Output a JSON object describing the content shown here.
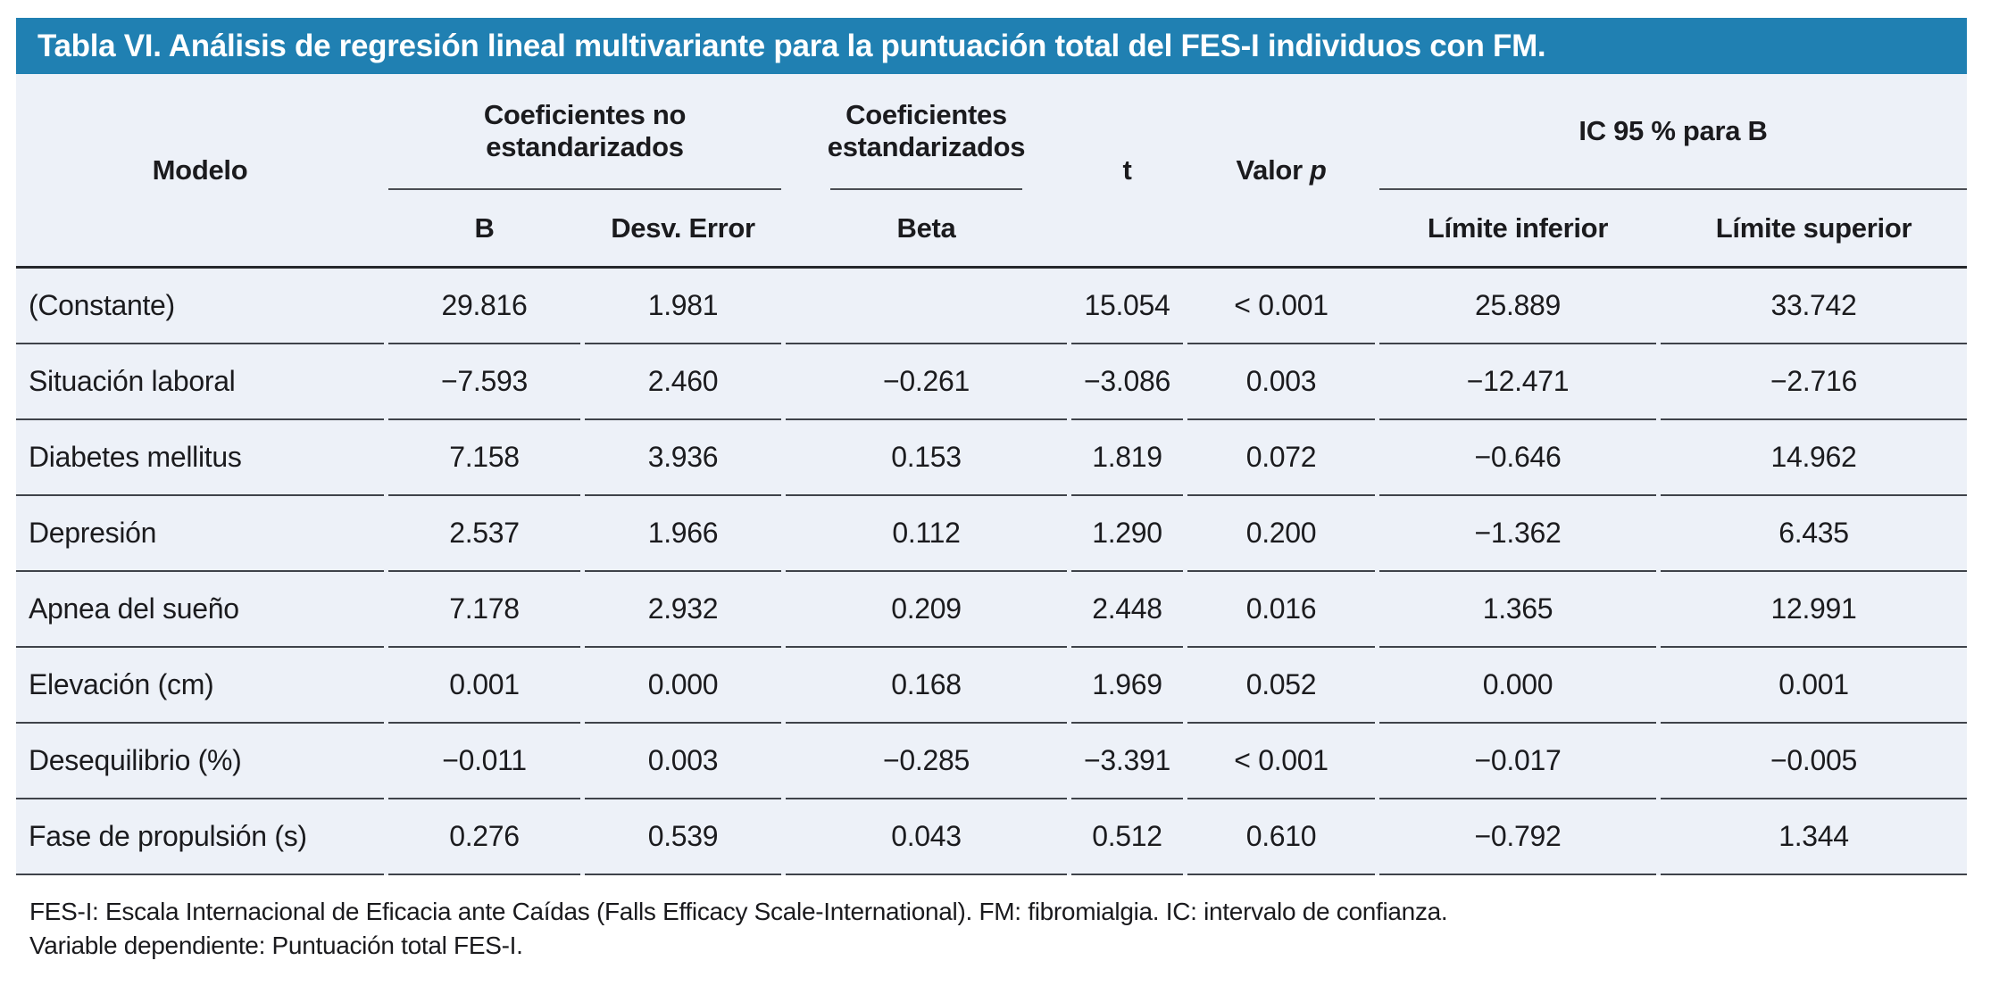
{
  "title": "Tabla VI. Análisis de regresión lineal multivariante para la puntuación total del FES-I individuos con FM.",
  "colors": {
    "title_bg": "#2080b2",
    "title_text": "#ffffff",
    "table_bg": "#edf1f8",
    "rule": "#3f434a"
  },
  "table": {
    "header": {
      "modelo": "Modelo",
      "group_no_estandarizados": "Coeficientes no estandarizados",
      "group_estandarizados": "Coeficientes estandarizados",
      "t_label": "t",
      "valor_label": "Valor",
      "p_label": "p",
      "group_ic": "IC 95 % para B",
      "sub_b": "B",
      "sub_desv_error": "Desv. Error",
      "sub_beta": "Beta",
      "sub_limite_inferior": "Límite inferior",
      "sub_limite_superior": "Límite superior"
    },
    "rows": [
      {
        "label": "(Constante)",
        "values": [
          "29.816",
          "1.981",
          "",
          "15.054",
          "< 0.001",
          "25.889",
          "33.742"
        ]
      },
      {
        "label": "Situación laboral",
        "values": [
          "−7.593",
          "2.460",
          "−0.261",
          "−3.086",
          "0.003",
          "−12.471",
          "−2.716"
        ]
      },
      {
        "label": "Diabetes mellitus",
        "values": [
          "7.158",
          "3.936",
          "0.153",
          "1.819",
          "0.072",
          "−0.646",
          "14.962"
        ]
      },
      {
        "label": "Depresión",
        "values": [
          "2.537",
          "1.966",
          "0.112",
          "1.290",
          "0.200",
          "−1.362",
          "6.435"
        ]
      },
      {
        "label": "Apnea del sueño",
        "values": [
          "7.178",
          "2.932",
          "0.209",
          "2.448",
          "0.016",
          "1.365",
          "12.991"
        ]
      },
      {
        "label": "Elevación (cm)",
        "values": [
          "0.001",
          "0.000",
          "0.168",
          "1.969",
          "0.052",
          "0.000",
          "0.001"
        ]
      },
      {
        "label": "Desequilibrio (%)",
        "values": [
          "−0.011",
          "0.003",
          "−0.285",
          "−3.391",
          "< 0.001",
          "−0.017",
          "−0.005"
        ]
      },
      {
        "label": "Fase de propulsión (s)",
        "values": [
          "0.276",
          "0.539",
          "0.043",
          "0.512",
          "0.610",
          "−0.792",
          "1.344"
        ]
      }
    ]
  },
  "footnotes": [
    "FES-I: Escala Internacional de Eficacia ante Caídas (Falls Efficacy Scale-International). FM: fibromialgia. IC: intervalo de confianza.",
    "Variable dependiente: Puntuación total FES-I."
  ]
}
